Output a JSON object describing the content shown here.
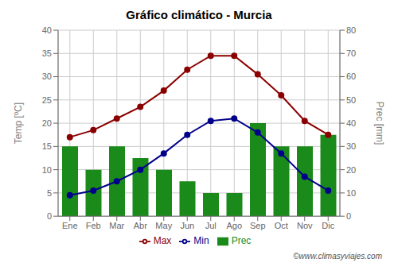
{
  "chart_data": {
    "type": "bar",
    "title": "Gráfico climático - Murcia",
    "categories": [
      "Ene",
      "Feb",
      "Mar",
      "Abr",
      "May",
      "Jun",
      "Jul",
      "Ago",
      "Sep",
      "Oct",
      "Nov",
      "Dic"
    ],
    "series": [
      {
        "name": "Prec",
        "type": "bar",
        "axis": "y2",
        "color": "#1a8a1a",
        "values": [
          30,
          20,
          30,
          25,
          20,
          15,
          10,
          10,
          40,
          30,
          30,
          35
        ]
      },
      {
        "name": "Min",
        "type": "line",
        "color": "#00008b",
        "marker": "circle",
        "values": [
          4.5,
          5.5,
          7.5,
          10,
          13.5,
          17.5,
          20.5,
          21,
          18,
          13.5,
          8.5,
          5.5
        ]
      },
      {
        "name": "Max",
        "type": "line",
        "color": "#8b0000",
        "marker": "circle",
        "values": [
          17,
          18.5,
          21,
          23.5,
          27,
          31.5,
          34.5,
          34.5,
          30.5,
          26,
          20.5,
          17.5
        ]
      }
    ],
    "ylabel": "Temp [ºC]",
    "y2label": "Prec [mm]",
    "ylim": [
      0,
      40
    ],
    "yticks": [
      0,
      5,
      10,
      15,
      20,
      25,
      30,
      35,
      40
    ],
    "y2lim": [
      0,
      80
    ],
    "y2ticks": [
      0,
      10,
      20,
      30,
      40,
      50,
      60,
      70,
      80
    ],
    "grid": true,
    "legend": "bottom",
    "annotations": [
      "©www.climasyviajes.com"
    ]
  }
}
